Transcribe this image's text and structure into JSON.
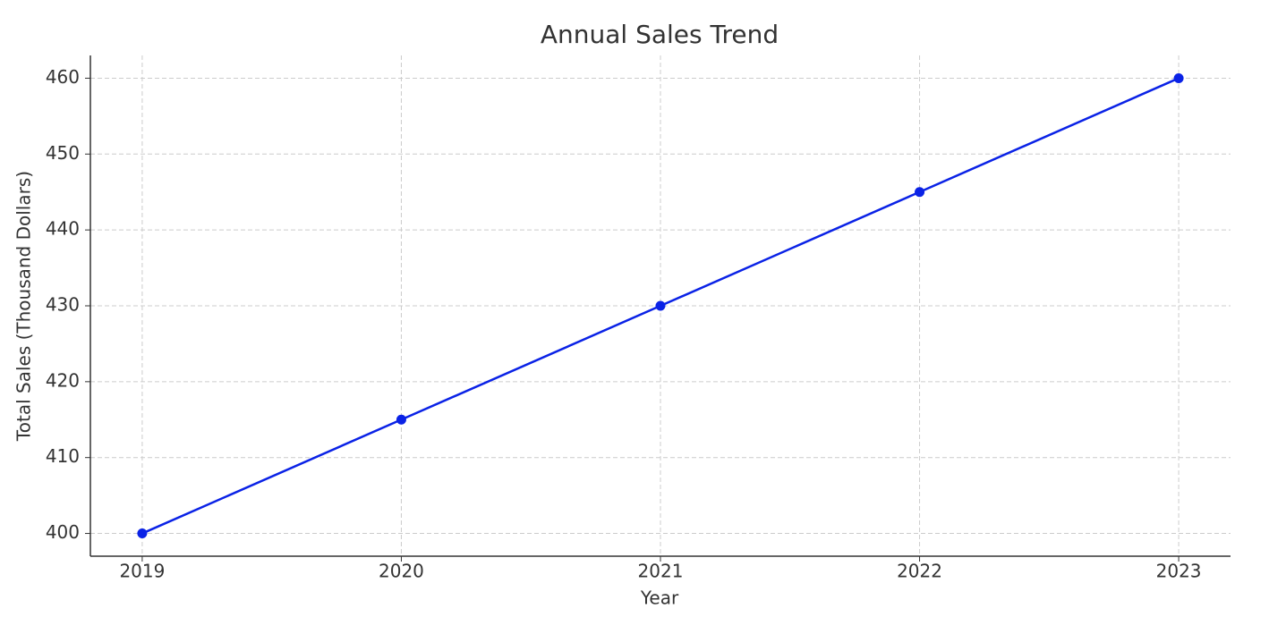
{
  "chart_data": {
    "type": "line",
    "title": "Annual Sales Trend",
    "x_label": "Year",
    "y_label": "Total Sales (Thousand Dollars)",
    "x": [
      2019,
      2020,
      2021,
      2022,
      2023
    ],
    "values": [
      400,
      415,
      430,
      445,
      460
    ],
    "color": "#0a22e6",
    "xlim": [
      2018.8,
      2023.2
    ],
    "xticks": [
      2019,
      2020,
      2021,
      2022,
      2023
    ],
    "ylim": [
      397,
      463
    ],
    "yticks": [
      400,
      410,
      420,
      430,
      440,
      450,
      460
    ],
    "grid": true
  }
}
